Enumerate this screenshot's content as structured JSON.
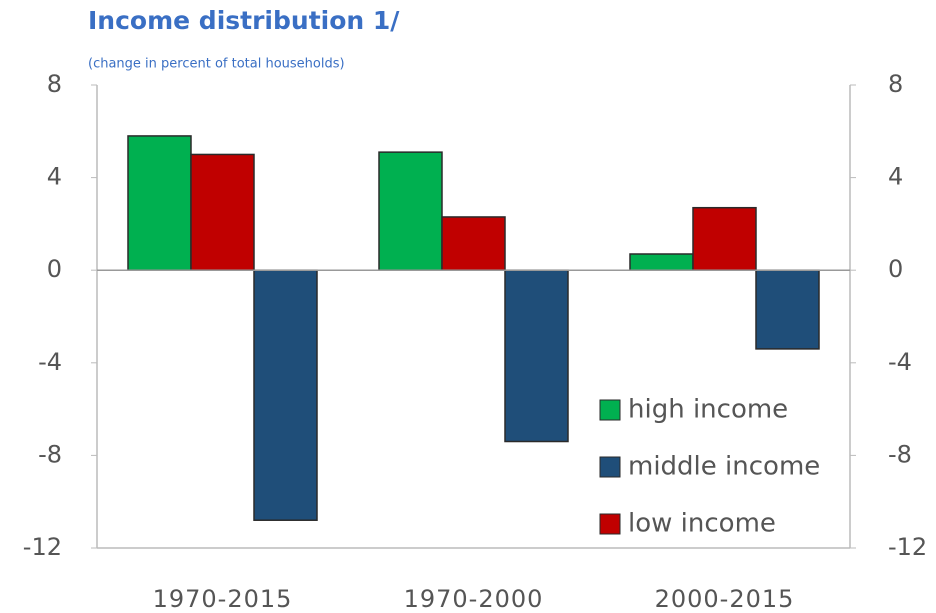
{
  "chart_data": {
    "type": "bar",
    "title": "Income distribution 1/",
    "subtitle": "(change in percent of total households)",
    "categories": [
      "1970-2015",
      "1970-2000",
      "2000-2015"
    ],
    "series": [
      {
        "name": "high income",
        "color": "#00b050",
        "values": [
          5.8,
          5.1,
          0.7
        ]
      },
      {
        "name": "middle income",
        "color": "#1f4e79",
        "values": [
          -10.8,
          -7.4,
          -3.4
        ]
      },
      {
        "name": "low income",
        "color": "#c00000",
        "values": [
          5.0,
          2.3,
          2.7
        ]
      }
    ],
    "ylim": [
      -12,
      8
    ],
    "yticks": [
      -12,
      -8,
      -4,
      0,
      4,
      8
    ],
    "y2lim": [
      -12,
      8
    ],
    "y2ticks": [
      -12,
      -8,
      -4,
      0,
      4,
      8
    ],
    "legend": "lower right"
  }
}
